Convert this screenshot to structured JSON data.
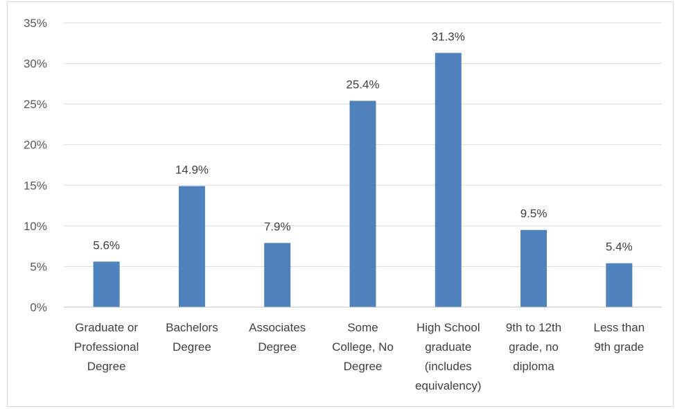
{
  "chart_data": {
    "type": "bar",
    "categories": [
      [
        "Graduate or",
        "Professional",
        "Degree"
      ],
      [
        "Bachelors",
        "Degree"
      ],
      [
        "Associates",
        "Degree"
      ],
      [
        "Some",
        "College, No",
        "Degree"
      ],
      [
        "High School",
        "graduate",
        "(includes",
        "equivalency)"
      ],
      [
        "9th to 12th",
        "grade, no",
        "diploma"
      ],
      [
        "Less than",
        "9th grade"
      ]
    ],
    "values": [
      5.6,
      14.9,
      7.9,
      25.4,
      31.3,
      9.5,
      5.4
    ],
    "value_labels": [
      "5.6%",
      "14.9%",
      "7.9%",
      "25.4%",
      "31.3%",
      "9.5%",
      "5.4%"
    ],
    "yticks": [
      0,
      5,
      10,
      15,
      20,
      25,
      30,
      35
    ],
    "ytick_labels": [
      "0%",
      "5%",
      "10%",
      "15%",
      "20%",
      "25%",
      "30%",
      "35%"
    ],
    "ylim": [
      0,
      35
    ],
    "grid": true,
    "legend": "none",
    "title": "",
    "xlabel": "",
    "ylabel": "",
    "bar_color": "#4f81bd",
    "grid_color": "#d9d9d9"
  }
}
